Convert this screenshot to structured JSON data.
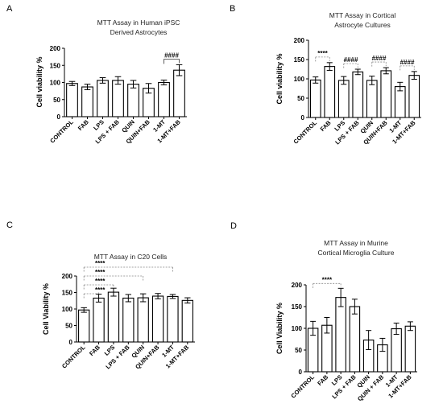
{
  "chart_data": [
    {
      "letter": "A",
      "type": "bar",
      "title": [
        "MTT Assay in Human iPSC",
        "Derived Astrocytes"
      ],
      "ylabel": "Cell viability %",
      "ylim": [
        0,
        200
      ],
      "yticks": [
        "0",
        "50",
        "100",
        "150",
        "200"
      ],
      "categories": [
        "CONTROL",
        "FAB",
        "LPS",
        "LPS + FAB",
        "QUIN",
        "QUIN+FAB",
        "1-MT",
        "1-MT+FAB"
      ],
      "values": [
        97,
        87,
        106,
        106,
        95,
        83,
        100,
        136
      ],
      "errors": [
        6,
        8,
        8,
        11,
        11,
        14,
        7,
        16
      ],
      "significance": [
        {
          "from": 6,
          "to": 7,
          "label": "####"
        }
      ]
    },
    {
      "letter": "B",
      "type": "bar",
      "title": [
        "MTT Assay in Cortical",
        "Astrocyte Cultures"
      ],
      "ylabel": "Cell viability %",
      "ylim": [
        0,
        200
      ],
      "yticks": [
        "0",
        "50",
        "100",
        "150",
        "200"
      ],
      "categories": [
        "CONTROL",
        "FAB",
        "LPS",
        "LPS + FAB",
        "QUIN",
        "QUIN+FAB",
        "1-MT",
        "1-MT+FAB"
      ],
      "values": [
        97,
        132,
        96,
        118,
        96,
        121,
        80,
        109
      ],
      "errors": [
        8,
        10,
        10,
        7,
        11,
        8,
        11,
        10
      ],
      "significance": [
        {
          "from": 0,
          "to": 1,
          "label": "****"
        },
        {
          "from": 2,
          "to": 3,
          "label": "####"
        },
        {
          "from": 4,
          "to": 5,
          "label": "####"
        },
        {
          "from": 6,
          "to": 7,
          "label": "####"
        }
      ]
    },
    {
      "letter": "C",
      "type": "bar",
      "title": [
        "MTT Assay in C20 Cells"
      ],
      "ylabel": "Cell Viability %",
      "ylim": [
        0,
        200
      ],
      "yticks": [
        "0",
        "50",
        "100",
        "150",
        "200"
      ],
      "categories": [
        "CONTROL",
        "FAB",
        "LPS",
        "LPS + FAB",
        "QUIN",
        "QUIN+FAB",
        "1-MT",
        "1-MT+FAB"
      ],
      "values": [
        97,
        133,
        151,
        133,
        134,
        139,
        138,
        126
      ],
      "errors": [
        7,
        12,
        12,
        11,
        12,
        8,
        6,
        8
      ],
      "significance": [
        {
          "from": 0,
          "to": 1,
          "label": "****"
        },
        {
          "from": 0,
          "to": 2,
          "label": "****"
        },
        {
          "from": 0,
          "to": 4,
          "label": "****"
        },
        {
          "from": 0,
          "to": 6,
          "label": "****"
        }
      ]
    },
    {
      "letter": "D",
      "type": "bar",
      "title": [
        "MTT Assay in Murine",
        "Cortical Microglia Culture"
      ],
      "ylabel": "Cell Viability %",
      "ylim": [
        0,
        200
      ],
      "yticks": [
        "0",
        "50",
        "100",
        "150",
        "200"
      ],
      "categories": [
        "CONTROL",
        "FAB",
        "LPS",
        "LPS + FAB",
        "QUIN",
        "QUIN + FAB",
        "1-MT",
        "1-MT+FAB"
      ],
      "values": [
        100,
        107,
        171,
        150,
        73,
        62,
        99,
        105
      ],
      "errors": [
        16,
        18,
        21,
        17,
        22,
        15,
        13,
        10
      ],
      "significance": [
        {
          "from": 0,
          "to": 2,
          "label": "****"
        }
      ]
    }
  ]
}
